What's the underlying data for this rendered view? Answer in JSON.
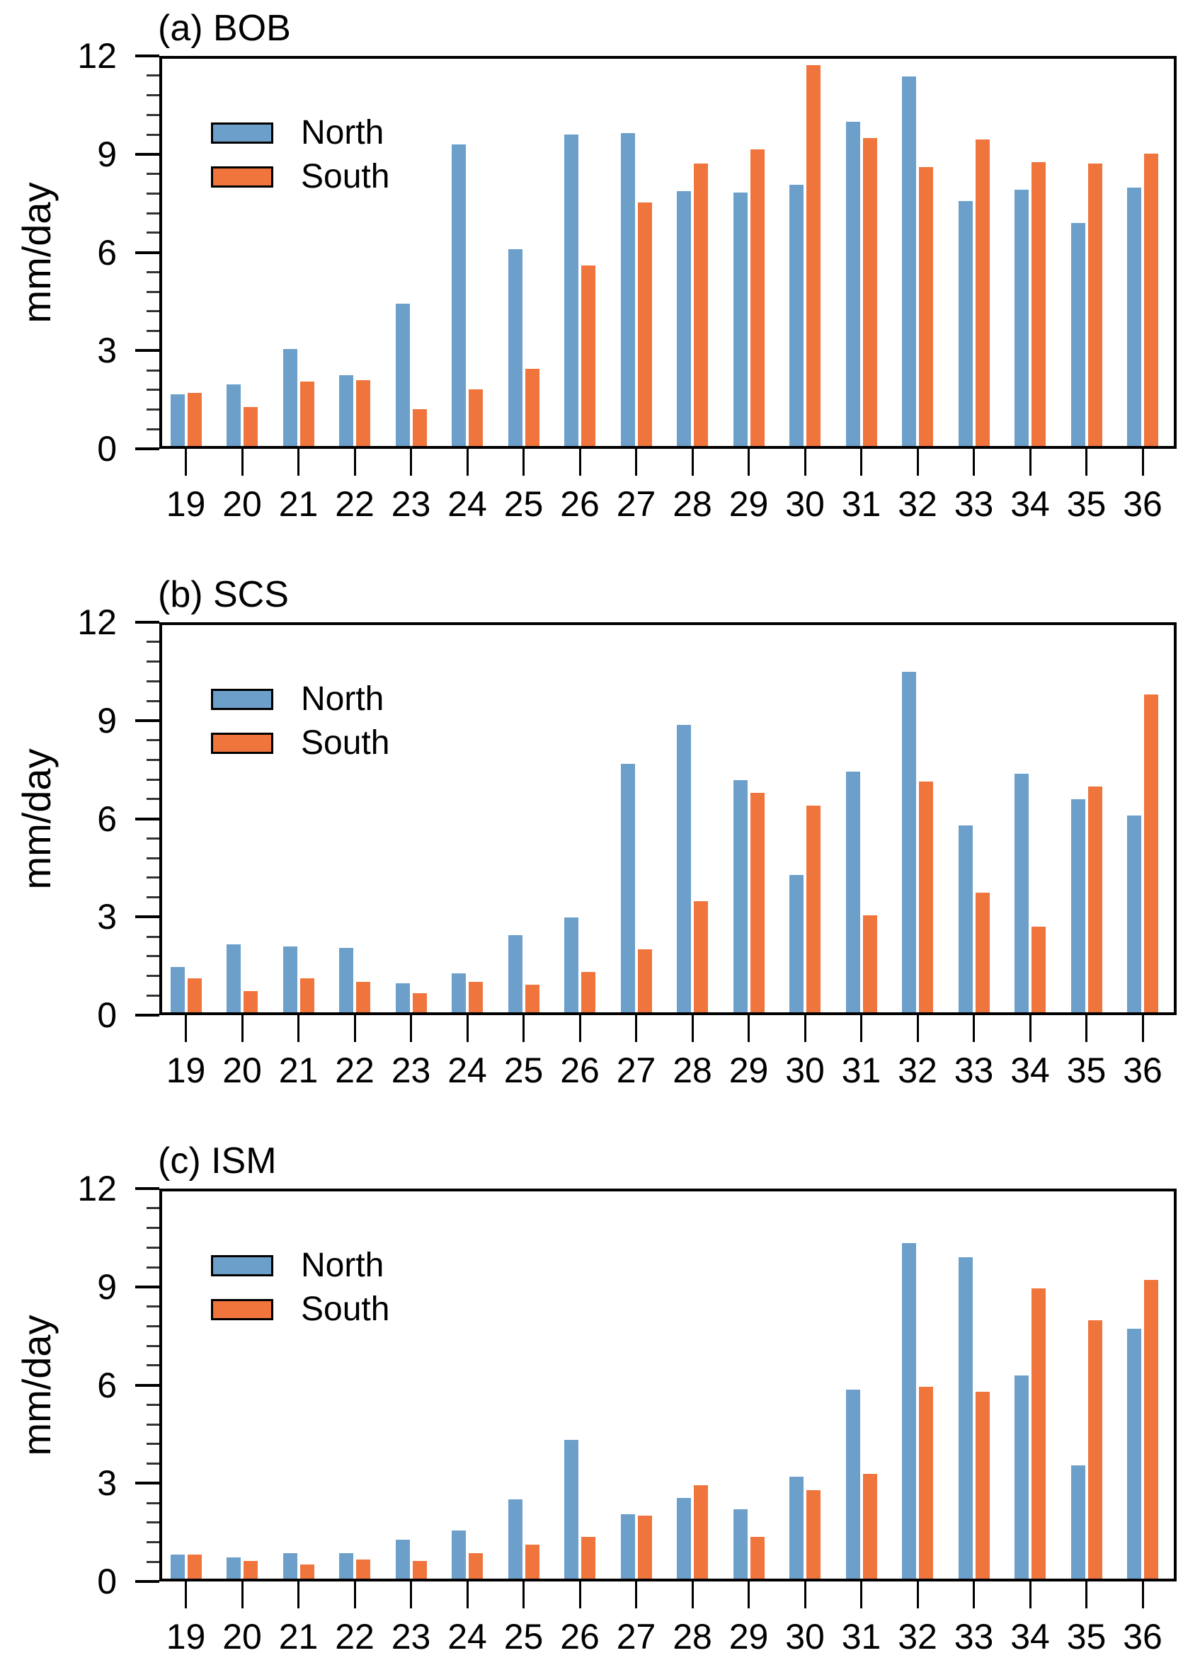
{
  "figure": {
    "background": "#ffffff"
  },
  "colors": {
    "north": "#6CA0CB",
    "south": "#F0753D",
    "frame": "#000000"
  },
  "axis": {
    "ylabel": "mm/day",
    "ytick_labels": [
      "12",
      "9",
      "6",
      "3",
      "0"
    ],
    "ytick_values": [
      12,
      9,
      6,
      3,
      0
    ],
    "y_max": 12,
    "y_minor_step": 0.6,
    "categories": [
      "19",
      "20",
      "21",
      "22",
      "23",
      "24",
      "25",
      "26",
      "27",
      "28",
      "29",
      "30",
      "31",
      "32",
      "33",
      "34",
      "35",
      "36"
    ]
  },
  "legend": {
    "north_label": "North",
    "south_label": "South",
    "position": "upper-left"
  },
  "chart_data": [
    {
      "type": "bar",
      "panel": "a",
      "title": "(a) BOB",
      "xlabel": "",
      "ylabel": "mm/day",
      "ylim": [
        0,
        12
      ],
      "grid": false,
      "legend_position": "upper-left",
      "categories": [
        19,
        20,
        21,
        22,
        23,
        24,
        25,
        26,
        27,
        28,
        29,
        30,
        31,
        32,
        33,
        34,
        35,
        36
      ],
      "series": [
        {
          "name": "North",
          "color": "#6CA0CB",
          "values": [
            1.6,
            1.9,
            3.0,
            2.2,
            4.4,
            9.35,
            6.1,
            9.65,
            9.7,
            7.9,
            7.85,
            8.1,
            10.05,
            11.45,
            7.6,
            7.95,
            6.9,
            8.0
          ]
        },
        {
          "name": "South",
          "color": "#F0753D",
          "values": [
            1.65,
            1.2,
            2.0,
            2.05,
            1.15,
            1.75,
            2.4,
            5.6,
            7.55,
            8.75,
            9.2,
            11.8,
            9.55,
            8.65,
            9.5,
            8.8,
            8.75,
            9.05
          ]
        }
      ]
    },
    {
      "type": "bar",
      "panel": "b",
      "title": "(b) SCS",
      "xlabel": "",
      "ylabel": "mm/day",
      "ylim": [
        0,
        12
      ],
      "grid": false,
      "legend_position": "upper-left",
      "categories": [
        19,
        20,
        21,
        22,
        23,
        24,
        25,
        26,
        27,
        28,
        29,
        30,
        31,
        32,
        33,
        34,
        35,
        36
      ],
      "series": [
        {
          "name": "North",
          "color": "#6CA0CB",
          "values": [
            1.4,
            2.1,
            2.05,
            2.0,
            0.9,
            1.2,
            2.4,
            2.95,
            7.7,
            8.9,
            7.2,
            4.25,
            7.45,
            10.55,
            5.8,
            7.4,
            6.6,
            6.1
          ]
        },
        {
          "name": "South",
          "color": "#F0753D",
          "values": [
            1.05,
            0.65,
            1.05,
            0.95,
            0.6,
            0.95,
            0.85,
            1.25,
            1.95,
            3.45,
            6.8,
            6.4,
            3.0,
            7.15,
            3.7,
            2.65,
            7.0,
            9.85
          ]
        }
      ]
    },
    {
      "type": "bar",
      "panel": "c",
      "title": "(c) ISM",
      "xlabel": "",
      "ylabel": "mm/day",
      "ylim": [
        0,
        12
      ],
      "grid": false,
      "legend_position": "upper-left",
      "categories": [
        19,
        20,
        21,
        22,
        23,
        24,
        25,
        26,
        27,
        28,
        29,
        30,
        31,
        32,
        33,
        34,
        35,
        36
      ],
      "series": [
        {
          "name": "North",
          "color": "#6CA0CB",
          "values": [
            0.75,
            0.65,
            0.8,
            0.8,
            1.2,
            1.5,
            2.45,
            4.3,
            2.0,
            2.5,
            2.15,
            3.15,
            5.85,
            10.4,
            9.95,
            6.3,
            3.5,
            7.75
          ]
        },
        {
          "name": "South",
          "color": "#F0753D",
          "values": [
            0.75,
            0.55,
            0.45,
            0.6,
            0.55,
            0.8,
            1.05,
            1.3,
            1.95,
            2.9,
            1.3,
            2.75,
            3.25,
            5.95,
            5.8,
            9.0,
            8.0,
            9.25
          ]
        }
      ]
    }
  ]
}
